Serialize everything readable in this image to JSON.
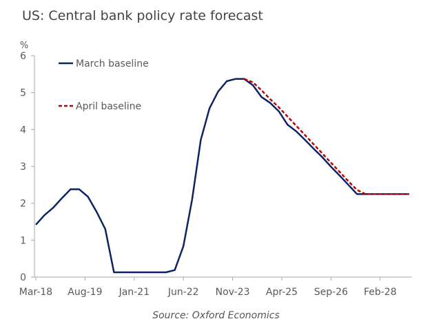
{
  "chart_data": {
    "type": "line",
    "title": "US: Central bank policy rate forecast",
    "source": "Source: Oxford Economics",
    "ylabel": "%",
    "ylim": [
      0,
      6
    ],
    "yticks": [
      0,
      1,
      2,
      3,
      4,
      5,
      6
    ],
    "xticks": [
      "Mar-18",
      "Aug-19",
      "Jan-21",
      "Jun-22",
      "Nov-23",
      "Apr-25",
      "Sep-26",
      "Feb-28"
    ],
    "grid": false,
    "legend_position": "top-left",
    "x": [
      "2018-03",
      "2018-06",
      "2018-09",
      "2018-12",
      "2019-03",
      "2019-06",
      "2019-09",
      "2019-12",
      "2020-03",
      "2020-06",
      "2020-09",
      "2020-12",
      "2021-03",
      "2021-06",
      "2021-09",
      "2021-12",
      "2022-03",
      "2022-06",
      "2022-09",
      "2022-12",
      "2023-03",
      "2023-06",
      "2023-09",
      "2023-12",
      "2024-03",
      "2024-06",
      "2024-09",
      "2024-12",
      "2025-03",
      "2025-06",
      "2025-09",
      "2025-12",
      "2026-03",
      "2026-06",
      "2026-09",
      "2026-12",
      "2027-03",
      "2027-06",
      "2027-09",
      "2027-12",
      "2028-03",
      "2028-06",
      "2028-09",
      "2028-12"
    ],
    "series": [
      {
        "name": "March baseline",
        "color": "#0b2265",
        "style": "solid",
        "values": [
          1.42,
          1.68,
          1.88,
          2.14,
          2.38,
          2.38,
          2.18,
          1.77,
          1.3,
          0.13,
          0.13,
          0.13,
          0.13,
          0.13,
          0.13,
          0.13,
          0.19,
          0.84,
          2.1,
          3.72,
          4.57,
          5.03,
          5.31,
          5.37,
          5.37,
          5.2,
          4.88,
          4.72,
          4.49,
          4.13,
          3.95,
          3.72,
          3.48,
          3.25,
          2.99,
          2.75,
          2.5,
          2.25,
          2.25,
          2.25,
          2.25,
          2.25,
          2.25,
          2.25
        ]
      },
      {
        "name": "April baseline",
        "color": "#c00000",
        "style": "dashed",
        "values": [
          null,
          null,
          null,
          null,
          null,
          null,
          null,
          null,
          null,
          null,
          null,
          null,
          null,
          null,
          null,
          null,
          null,
          null,
          null,
          null,
          null,
          null,
          null,
          null,
          5.37,
          5.28,
          5.06,
          4.82,
          4.6,
          4.35,
          4.1,
          3.85,
          3.6,
          3.35,
          3.1,
          2.85,
          2.6,
          2.36,
          2.25,
          2.25,
          2.25,
          2.25,
          2.25,
          2.25
        ]
      }
    ]
  }
}
